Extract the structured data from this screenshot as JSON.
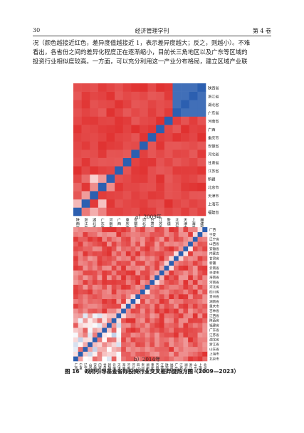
{
  "header": {
    "page_number": "30",
    "journal": "经济管理学刊",
    "volume": "第 4 卷"
  },
  "body_text": [
    "况（颜色越接近红色，差异度值越接近 1，表示差异度越大；反之，则越小）。不难",
    "看出，各省份之间的差异化程度正在逐渐缩小，目前长三角地区以及广东等区域的",
    "投资行业相似度较高。一方面，可以充分利用这一产业分布格局，建立区域产业联"
  ],
  "figure": {
    "caption": "图 16　政府引导基金省际投资行业交叉差异度热力图（2009—2023）",
    "colors": {
      "high": "#e0302f",
      "low": "#2c5fb0",
      "mid": "#ffffff"
    },
    "panels": [
      {
        "label": "a）2009年",
        "chart_data": {
          "type": "heatmap",
          "provinces": [
            "福建省",
            "上海市",
            "天津市",
            "北京市",
            "新疆",
            "江苏省",
            "甘肃省",
            "河北省",
            "安徽省",
            "重庆市",
            "广西",
            "河南省",
            "广东省",
            "湖北省",
            "浙江省",
            "陕西省"
          ]
        }
      },
      {
        "label": "b）2014年",
        "chart_data": {
          "type": "heatmap",
          "provinces": [
            "北京市",
            "上海市",
            "山东省",
            "浙江省",
            "湖北省",
            "江苏省",
            "广东省",
            "福建省",
            "陕西省",
            "江西省",
            "吉林省",
            "重庆市",
            "湖南省",
            "贵州省",
            "四川省",
            "河北省",
            "河南省",
            "海南省",
            "天津市",
            "云南省",
            "新疆",
            "甘肃省",
            "内蒙古",
            "安徽省",
            "山西省",
            "辽宁省",
            "宁夏",
            "广西"
          ]
        }
      }
    ]
  }
}
